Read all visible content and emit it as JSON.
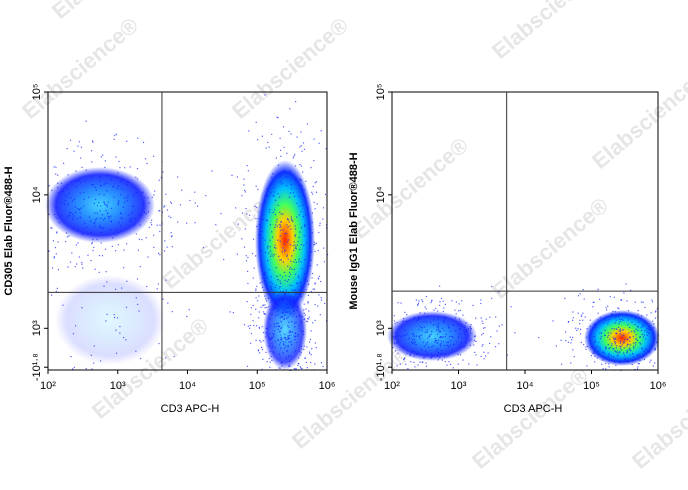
{
  "watermark": "Elabscience®",
  "chart_data": [
    {
      "type": "flow-density",
      "xlabel": "CD3 APC-H",
      "ylabel": "CD305 Elab Fluor®488-H",
      "xscale": "log",
      "yscale": "biexponential",
      "xlim": [
        100,
        1000000
      ],
      "xticks": [
        {
          "value": 100,
          "label": "10²"
        },
        {
          "value": 1000,
          "label": "10³"
        },
        {
          "value": 10000,
          "label": "10⁴"
        },
        {
          "value": 100000,
          "label": "10⁵"
        },
        {
          "value": 1000000,
          "label": "10⁶"
        }
      ],
      "yticks": [
        {
          "value": -63,
          "label": "-10¹·⁸"
        },
        {
          "value": 1000,
          "label": "10³"
        },
        {
          "value": 10000,
          "label": "10⁴"
        },
        {
          "value": 100000,
          "label": "10⁵"
        }
      ],
      "gate_x": 4300,
      "gate_y": 1860
    },
    {
      "type": "flow-density",
      "xlabel": "CD3 APC-H",
      "ylabel": "Mouse IgG1 Elab Fluor®488-H",
      "xscale": "log",
      "yscale": "biexponential",
      "xlim": [
        100,
        1000000
      ],
      "xticks": [
        {
          "value": 100,
          "label": "10²"
        },
        {
          "value": 1000,
          "label": "10³"
        },
        {
          "value": 10000,
          "label": "10⁴"
        },
        {
          "value": 100000,
          "label": "10⁵"
        },
        {
          "value": 1000000,
          "label": "10⁶"
        }
      ],
      "yticks": [
        {
          "value": -63,
          "label": "-10¹·⁸"
        },
        {
          "value": 1000,
          "label": "10³"
        },
        {
          "value": 10000,
          "label": "10⁴"
        },
        {
          "value": 100000,
          "label": "10⁵"
        }
      ],
      "gate_x": 5300,
      "gate_y": 1900
    }
  ]
}
